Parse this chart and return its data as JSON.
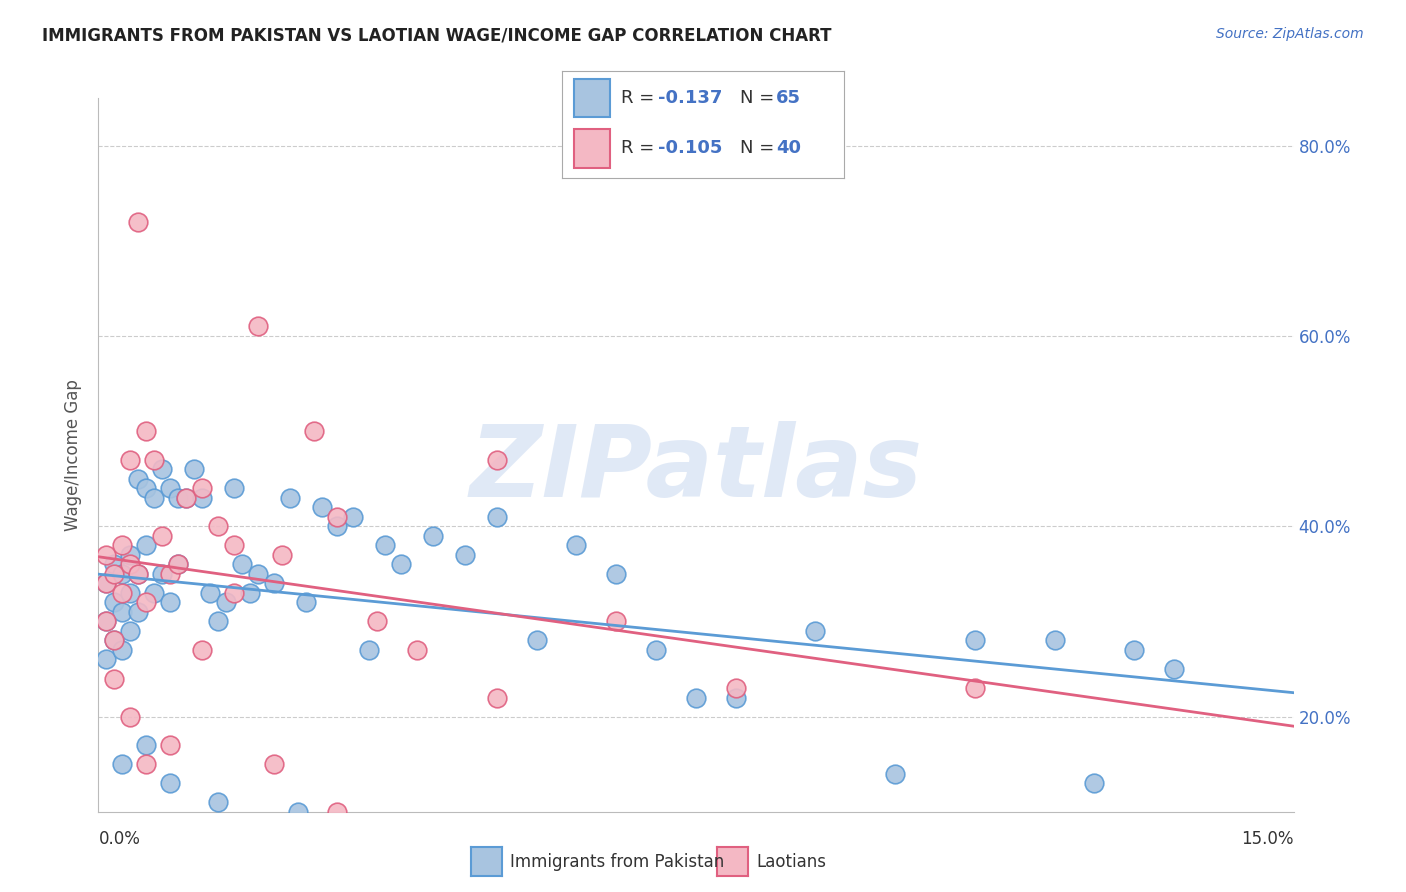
{
  "title": "IMMIGRANTS FROM PAKISTAN VS LAOTIAN WAGE/INCOME GAP CORRELATION CHART",
  "source": "Source: ZipAtlas.com",
  "ylabel": "Wage/Income Gap",
  "xlim": [
    0.0,
    0.15
  ],
  "ylim": [
    0.1,
    0.85
  ],
  "pakistan_color": "#a8c4e0",
  "pakistan_line_color": "#5b9bd5",
  "laotian_color": "#f4b8c4",
  "laotian_line_color": "#e06080",
  "pakistan_x": [
    0.001,
    0.001,
    0.001,
    0.002,
    0.002,
    0.002,
    0.003,
    0.003,
    0.003,
    0.004,
    0.004,
    0.004,
    0.005,
    0.005,
    0.005,
    0.006,
    0.006,
    0.007,
    0.007,
    0.008,
    0.008,
    0.009,
    0.009,
    0.01,
    0.01,
    0.011,
    0.012,
    0.013,
    0.014,
    0.015,
    0.016,
    0.017,
    0.018,
    0.019,
    0.02,
    0.022,
    0.024,
    0.026,
    0.028,
    0.03,
    0.032,
    0.034,
    0.036,
    0.038,
    0.042,
    0.046,
    0.05,
    0.055,
    0.06,
    0.065,
    0.07,
    0.075,
    0.08,
    0.09,
    0.1,
    0.11,
    0.12,
    0.125,
    0.13,
    0.135,
    0.003,
    0.006,
    0.009,
    0.015,
    0.025
  ],
  "pakistan_y": [
    0.34,
    0.3,
    0.26,
    0.36,
    0.32,
    0.28,
    0.35,
    0.31,
    0.27,
    0.37,
    0.33,
    0.29,
    0.45,
    0.35,
    0.31,
    0.44,
    0.38,
    0.43,
    0.33,
    0.46,
    0.35,
    0.44,
    0.32,
    0.43,
    0.36,
    0.43,
    0.46,
    0.43,
    0.33,
    0.3,
    0.32,
    0.44,
    0.36,
    0.33,
    0.35,
    0.34,
    0.43,
    0.32,
    0.42,
    0.4,
    0.41,
    0.27,
    0.38,
    0.36,
    0.39,
    0.37,
    0.41,
    0.28,
    0.38,
    0.35,
    0.27,
    0.22,
    0.22,
    0.29,
    0.14,
    0.28,
    0.28,
    0.13,
    0.27,
    0.25,
    0.15,
    0.17,
    0.13,
    0.11,
    0.1
  ],
  "laotian_x": [
    0.001,
    0.001,
    0.001,
    0.002,
    0.002,
    0.003,
    0.003,
    0.004,
    0.004,
    0.005,
    0.005,
    0.006,
    0.006,
    0.007,
    0.008,
    0.009,
    0.01,
    0.011,
    0.013,
    0.015,
    0.017,
    0.02,
    0.023,
    0.027,
    0.03,
    0.035,
    0.04,
    0.05,
    0.065,
    0.08,
    0.002,
    0.004,
    0.006,
    0.009,
    0.013,
    0.017,
    0.022,
    0.03,
    0.05,
    0.11
  ],
  "laotian_y": [
    0.34,
    0.3,
    0.37,
    0.35,
    0.28,
    0.33,
    0.38,
    0.36,
    0.47,
    0.72,
    0.35,
    0.5,
    0.32,
    0.47,
    0.39,
    0.35,
    0.36,
    0.43,
    0.44,
    0.4,
    0.38,
    0.61,
    0.37,
    0.5,
    0.41,
    0.3,
    0.27,
    0.47,
    0.3,
    0.23,
    0.24,
    0.2,
    0.15,
    0.17,
    0.27,
    0.33,
    0.15,
    0.1,
    0.22,
    0.23
  ],
  "watermark": "ZIPatlas",
  "background_color": "#ffffff",
  "grid_color": "#cccccc",
  "right_ytick_color": "#4472c4",
  "title_fontsize": 12,
  "source_fontsize": 10,
  "tick_fontsize": 12,
  "ylabel_fontsize": 12
}
